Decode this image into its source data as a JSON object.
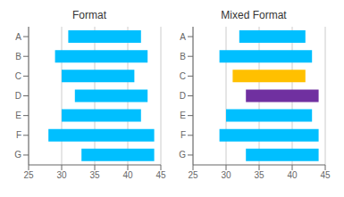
{
  "chart_data": [
    {
      "type": "bar",
      "orientation": "horizontal",
      "title": "Format",
      "categories": [
        "A",
        "B",
        "C",
        "D",
        "E",
        "F",
        "G"
      ],
      "values": [
        [
          31,
          42
        ],
        [
          29,
          43
        ],
        [
          30,
          41
        ],
        [
          32,
          43
        ],
        [
          30,
          42
        ],
        [
          28,
          44
        ],
        [
          33,
          44
        ]
      ],
      "color": "#00BFFF",
      "xlim": [
        25,
        45
      ],
      "xticks": [
        25,
        30,
        35,
        40,
        45
      ],
      "grid": true
    },
    {
      "type": "bar",
      "orientation": "horizontal",
      "title": "Mixed Format",
      "categories": [
        "A",
        "B",
        "C",
        "D",
        "E",
        "F",
        "G"
      ],
      "values": [
        [
          32,
          42
        ],
        [
          29,
          43
        ],
        [
          31,
          42
        ],
        [
          33,
          44
        ],
        [
          30,
          43
        ],
        [
          29,
          44
        ],
        [
          33,
          44
        ]
      ],
      "colors": [
        "#00BFFF",
        "#00BFFF",
        "#FFC000",
        "#7030A0",
        "#00BFFF",
        "#00BFFF",
        "#00BFFF"
      ],
      "xlim": [
        25,
        45
      ],
      "xticks": [
        25,
        30,
        35,
        40,
        45
      ],
      "grid": true
    }
  ]
}
